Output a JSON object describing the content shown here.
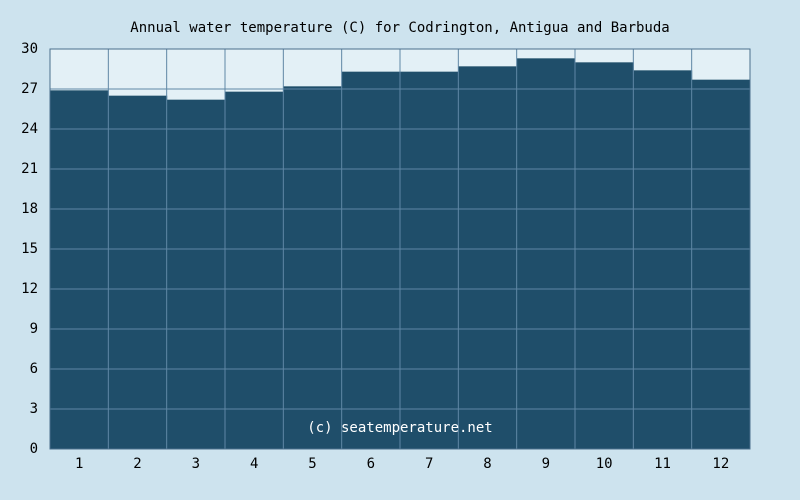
{
  "chart_data": {
    "type": "bar",
    "title": "Annual water temperature (C) for Codrington, Antigua and Barbuda",
    "annotation": "(c) seatemperature.net",
    "categories": [
      "1",
      "2",
      "3",
      "4",
      "5",
      "6",
      "7",
      "8",
      "9",
      "10",
      "11",
      "12"
    ],
    "values": [
      26.9,
      26.5,
      26.2,
      26.8,
      27.2,
      28.3,
      28.3,
      28.7,
      29.3,
      29.0,
      28.4,
      27.7
    ],
    "color": "#1f4e6a",
    "ylim": [
      0,
      30
    ],
    "yticks": [
      0,
      3,
      6,
      9,
      12,
      15,
      18,
      21,
      24,
      27,
      30
    ],
    "grid": true
  }
}
